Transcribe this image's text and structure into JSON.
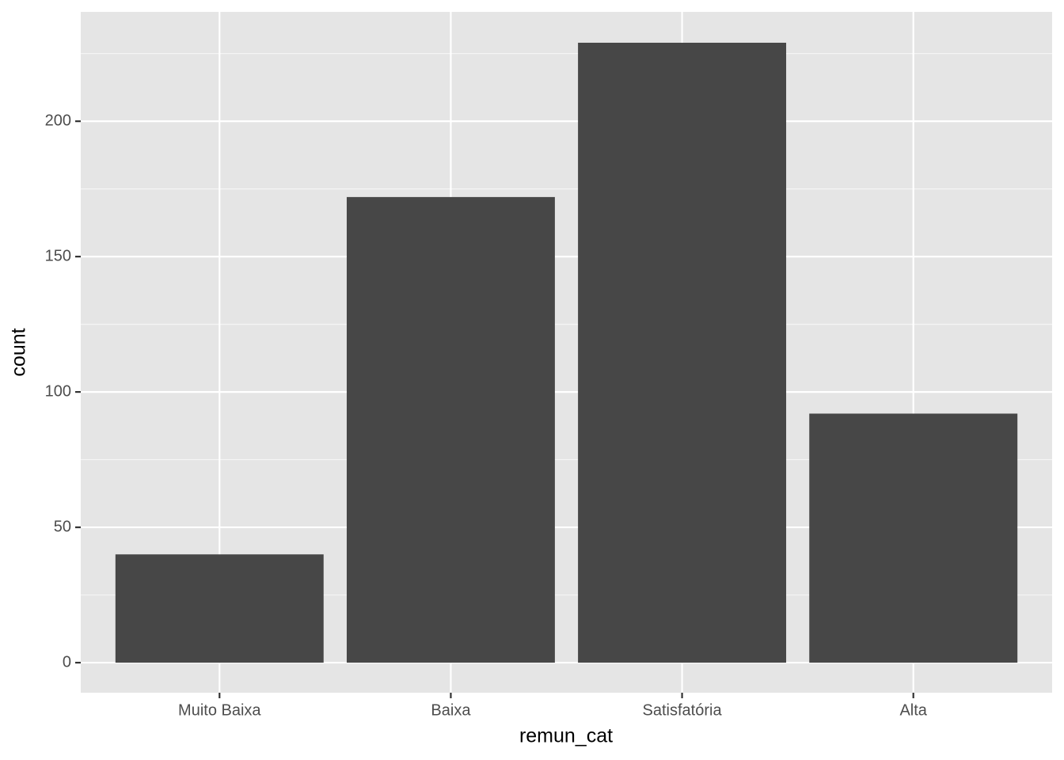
{
  "chart_data": {
    "type": "bar",
    "x_label": "remun_cat",
    "y_label": "count",
    "categories": [
      "Muito Baixa",
      "Baixa",
      "Satisfatória",
      "Alta"
    ],
    "values": [
      40,
      172,
      229,
      92
    ],
    "color": "#474747",
    "ylim": [
      -11.1,
      240.4
    ],
    "yticks": [
      0,
      50,
      100,
      150,
      200
    ],
    "grid": true
  }
}
